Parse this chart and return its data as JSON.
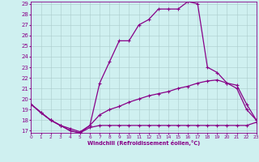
{
  "xlabel": "Windchill (Refroidissement éolien,°C)",
  "background_color": "#cff0f0",
  "grid_color": "#aacccc",
  "line_color": "#880088",
  "xlim": [
    0,
    23
  ],
  "ylim": [
    17,
    29
  ],
  "yticks": [
    17,
    18,
    19,
    20,
    21,
    22,
    23,
    24,
    25,
    26,
    27,
    28,
    29
  ],
  "xticks": [
    0,
    1,
    2,
    3,
    4,
    5,
    6,
    7,
    8,
    9,
    10,
    11,
    12,
    13,
    14,
    15,
    16,
    17,
    18,
    19,
    20,
    21,
    22,
    23
  ],
  "curve1_x": [
    0,
    1,
    2,
    3,
    4,
    5,
    6,
    7,
    8,
    9,
    10,
    11,
    12,
    13,
    14,
    15,
    16,
    17,
    18,
    19,
    20,
    21,
    22,
    23
  ],
  "curve1_y": [
    19.5,
    18.7,
    18.0,
    17.5,
    17.0,
    16.8,
    17.3,
    17.5,
    17.5,
    17.5,
    17.5,
    17.5,
    17.5,
    17.5,
    17.5,
    17.5,
    17.5,
    17.5,
    17.5,
    17.5,
    17.5,
    17.5,
    17.5,
    17.8
  ],
  "curve2_x": [
    0,
    1,
    2,
    3,
    4,
    5,
    6,
    7,
    8,
    9,
    10,
    11,
    12,
    13,
    14,
    15,
    16,
    17,
    18,
    19,
    20,
    21,
    22,
    23
  ],
  "curve2_y": [
    19.5,
    18.7,
    18.0,
    17.5,
    17.2,
    16.9,
    17.5,
    18.5,
    19.0,
    19.3,
    19.7,
    20.0,
    20.3,
    20.5,
    20.7,
    21.0,
    21.2,
    21.5,
    21.7,
    21.8,
    21.5,
    21.3,
    19.5,
    18.0
  ],
  "curve3_x": [
    0,
    2,
    3,
    4,
    5,
    6,
    7,
    8,
    9,
    10,
    11,
    12,
    13,
    14,
    15,
    16,
    17,
    18,
    19,
    20,
    21,
    22,
    23
  ],
  "curve3_y": [
    19.5,
    18.0,
    17.5,
    17.0,
    16.8,
    17.5,
    21.5,
    23.5,
    25.5,
    25.5,
    27.0,
    27.5,
    28.5,
    28.5,
    28.5,
    29.2,
    29.0,
    23.0,
    22.5,
    21.5,
    21.0,
    19.0,
    18.0
  ]
}
